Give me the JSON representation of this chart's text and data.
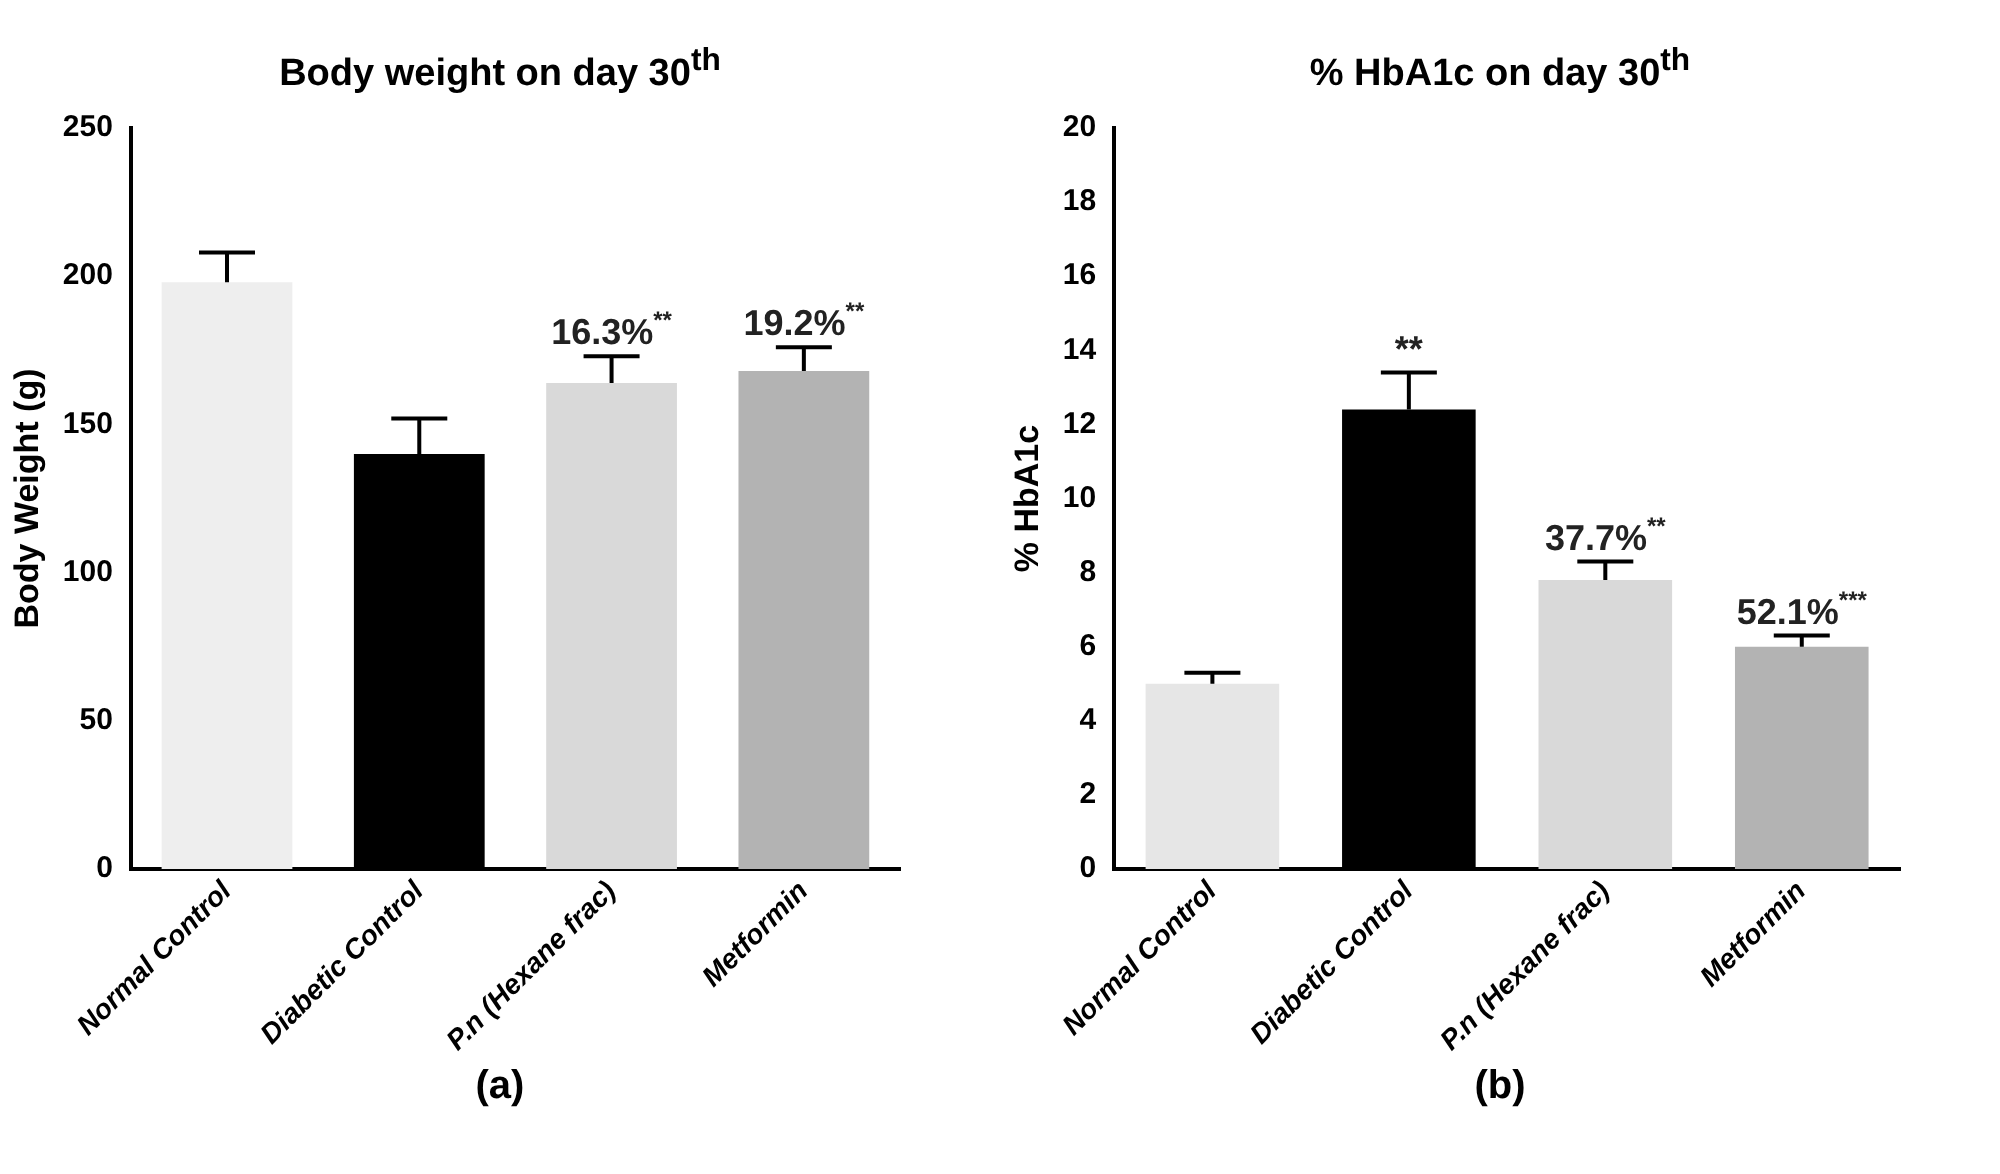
{
  "chart_data": [
    {
      "type": "bar",
      "title": "Body weight on day 30$^{th}$",
      "ylabel": "Body Weight (g)",
      "categories": [
        "Normal Control",
        "Diabetic Control",
        "P.n (Hexane frac)",
        "Metformin"
      ],
      "values": [
        198,
        140,
        164,
        168
      ],
      "errors": [
        10,
        12,
        9,
        8
      ],
      "colors": [
        "#eeeeee",
        "#000000",
        "#d9d9d9",
        "#b3b3b3"
      ],
      "ylim": [
        0,
        250
      ],
      "yticks": [
        0,
        50,
        100,
        150,
        200,
        250
      ],
      "grid": false,
      "legend": false,
      "annotations": [
        {
          "text": "16.3%$^{**}$",
          "x": "P.n (Hexane frac)",
          "y": 173
        },
        {
          "text": "19.2%$^{**}$",
          "x": "Metformin",
          "y": 176
        },
        "(a)"
      ]
    },
    {
      "type": "bar",
      "title": "% HbA1c on day 30$^{th}$",
      "ylabel": "% HbA1c",
      "categories": [
        "Normal Control",
        "Diabetic Control",
        "P.n (Hexane frac)",
        "Metformin"
      ],
      "values": [
        5.0,
        12.4,
        7.8,
        6.0
      ],
      "errors": [
        0.3,
        1.0,
        0.5,
        0.3
      ],
      "colors": [
        "#e6e6e6",
        "#000000",
        "#d9d9d9",
        "#b3b3b3"
      ],
      "ylim": [
        0,
        20
      ],
      "yticks": [
        0,
        2,
        4,
        6,
        8,
        10,
        12,
        14,
        16,
        18,
        20
      ],
      "grid": false,
      "legend": false,
      "annotations": [
        {
          "text": "**",
          "x": "Diabetic Control",
          "y": 13.4
        },
        {
          "text": "37.7%$^{**}$",
          "x": "P.n (Hexane frac)",
          "y": 8.3
        },
        {
          "text": "52.1%$^{***}$",
          "x": "Metformin",
          "y": 6.3
        },
        "(b)"
      ]
    }
  ]
}
